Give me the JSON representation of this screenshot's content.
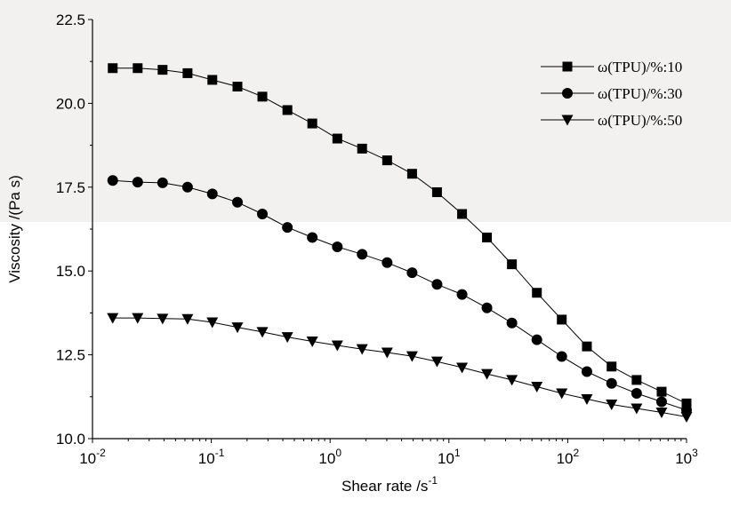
{
  "chart_data": {
    "type": "line",
    "xscale": "log",
    "x_label": "Shear rate /s^-1",
    "y_label": "Viscosity /(Pa s)",
    "x": [
      0.0148,
      0.024,
      0.0389,
      0.0631,
      0.102,
      0.166,
      0.269,
      0.437,
      0.708,
      1.15,
      1.86,
      3.02,
      4.9,
      7.94,
      12.9,
      20.9,
      33.9,
      55,
      89.1,
      145,
      234,
      380,
      617,
      1000
    ],
    "series": [
      {
        "name": "ω(TPU)/%:10",
        "color": "#000000",
        "marker": "square",
        "values": [
          21.05,
          21.05,
          21.0,
          20.9,
          20.7,
          20.5,
          20.2,
          19.8,
          19.4,
          18.95,
          18.65,
          18.3,
          17.9,
          17.35,
          16.7,
          16.0,
          15.2,
          14.35,
          13.55,
          12.75,
          12.15,
          11.75,
          11.4,
          11.05
        ]
      },
      {
        "name": "ω(TPU)/%:30",
        "color": "#000000",
        "marker": "circle",
        "values": [
          17.7,
          17.65,
          17.63,
          17.5,
          17.3,
          17.05,
          16.7,
          16.3,
          16.0,
          15.72,
          15.5,
          15.25,
          14.95,
          14.6,
          14.3,
          13.9,
          13.45,
          12.95,
          12.45,
          12.0,
          11.65,
          11.35,
          11.1,
          10.85
        ]
      },
      {
        "name": "ω(TPU)/%:50",
        "color": "#000000",
        "marker": "triangle-down",
        "values": [
          13.6,
          13.6,
          13.58,
          13.57,
          13.47,
          13.32,
          13.18,
          13.03,
          12.9,
          12.78,
          12.67,
          12.57,
          12.46,
          12.3,
          12.12,
          11.93,
          11.75,
          11.55,
          11.35,
          11.18,
          11.02,
          10.9,
          10.78,
          10.65
        ]
      }
    ],
    "xlim": [
      0.01,
      1000
    ],
    "xticks": [
      {
        "value": 0.01,
        "label": "10^-2"
      },
      {
        "value": 0.1,
        "label": "10^-1"
      },
      {
        "value": 1,
        "label": "10^0"
      },
      {
        "value": 10,
        "label": "10^1"
      },
      {
        "value": 100,
        "label": "10^2"
      },
      {
        "value": 1000,
        "label": "10^3"
      }
    ],
    "ylim": [
      10,
      22.5
    ],
    "yticks": [
      {
        "value": 10,
        "label": "10.0"
      },
      {
        "value": 12.5,
        "label": "12.5"
      },
      {
        "value": 15,
        "label": "15.0"
      },
      {
        "value": 17.5,
        "label": "17.5"
      },
      {
        "value": 20,
        "label": "20.0"
      },
      {
        "value": 22.5,
        "label": "22.5"
      }
    ],
    "legend": "top-right"
  }
}
